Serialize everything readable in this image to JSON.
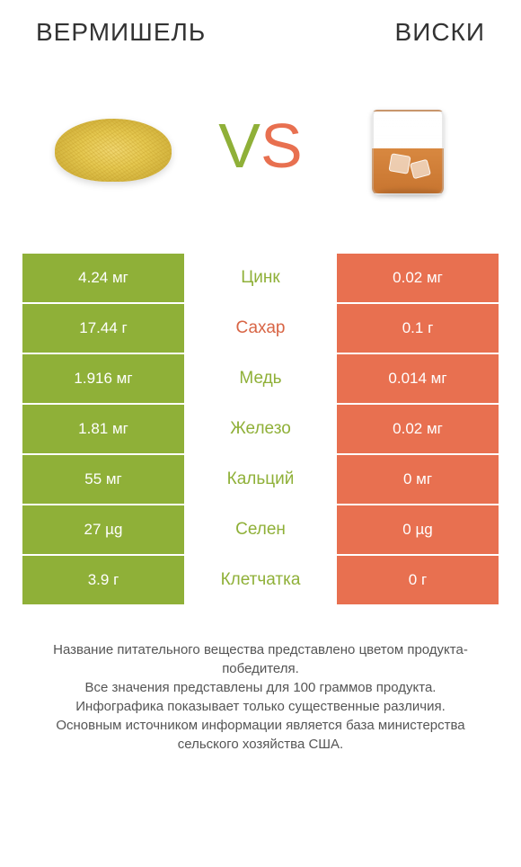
{
  "titles": {
    "left": "ВЕРМИШЕЛЬ",
    "right": "ВИСКИ"
  },
  "vs": {
    "v": "V",
    "s": "S"
  },
  "colors": {
    "green": "#8fb038",
    "red": "#e87050",
    "label_green": "#8fb038",
    "label_red": "#d86545"
  },
  "rows": [
    {
      "left": "4.24 мг",
      "label": "Цинк",
      "right": "0.02 мг",
      "winner": "left"
    },
    {
      "left": "17.44 г",
      "label": "Сахар",
      "right": "0.1 г",
      "winner": "right"
    },
    {
      "left": "1.916 мг",
      "label": "Медь",
      "right": "0.014 мг",
      "winner": "left"
    },
    {
      "left": "1.81 мг",
      "label": "Железо",
      "right": "0.02 мг",
      "winner": "left"
    },
    {
      "left": "55 мг",
      "label": "Кальций",
      "right": "0 мг",
      "winner": "left"
    },
    {
      "left": "27 µg",
      "label": "Селен",
      "right": "0 µg",
      "winner": "left"
    },
    {
      "left": "3.9 г",
      "label": "Клетчатка",
      "right": "0 г",
      "winner": "left"
    }
  ],
  "footer": {
    "line1": "Название питательного вещества представлено цветом продукта-победителя.",
    "line2": "Все значения представлены для 100 граммов продукта.",
    "line3": "Инфографика показывает только существенные различия.",
    "line4": "Основным источником информации является база министерства сельского хозяйства США."
  }
}
